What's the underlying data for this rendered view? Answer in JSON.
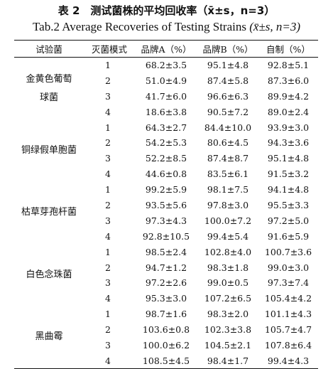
{
  "title_cn": "表 2　测试菌株的平均回收率（x̄±s，n=3）",
  "title_en": {
    "prefix": "Tab.2   Average Recoveries of Testing Strains",
    "suffix": "(x̄±s, n=3)"
  },
  "headers": [
    "试验菌",
    "灭菌模式",
    "品牌A（%）",
    "品牌B（%）",
    "自制（%）"
  ],
  "groups": [
    {
      "strain": "金黄色葡萄\n球菌",
      "rows": [
        {
          "mode": "1",
          "a": "68.2±3.5",
          "b": "95.1±4.8",
          "c": "92.8±5.1"
        },
        {
          "mode": "2",
          "a": "51.0±4.9",
          "b": "87.4±5.8",
          "c": "87.3±6.0"
        },
        {
          "mode": "3",
          "a": "41.7±6.0",
          "b": "96.6±6.3",
          "c": "89.9±4.2"
        },
        {
          "mode": "4",
          "a": "18.6±3.8",
          "b": "90.5±7.2",
          "c": "89.0±2.4"
        }
      ]
    },
    {
      "strain": "铜绿假单胞菌",
      "rows": [
        {
          "mode": "1",
          "a": "64.3±2.7",
          "b": "84.4±10.0",
          "c": "93.9±3.0"
        },
        {
          "mode": "2",
          "a": "54.2±5.3",
          "b": "80.6±4.5",
          "c": "94.3±3.6"
        },
        {
          "mode": "3",
          "a": "52.2±8.5",
          "b": "87.4±8.7",
          "c": "95.1±4.8"
        },
        {
          "mode": "4",
          "a": "44.6±0.8",
          "b": "83.5±6.1",
          "c": "91.5±3.2"
        }
      ]
    },
    {
      "strain": "枯草芽孢杆菌",
      "rows": [
        {
          "mode": "1",
          "a": "99.2±5.9",
          "b": "98.1±7.5",
          "c": "94.1±4.8"
        },
        {
          "mode": "2",
          "a": "93.5±5.6",
          "b": "97.8±3.0",
          "c": "95.5±3.3"
        },
        {
          "mode": "3",
          "a": "97.3±4.3",
          "b": "100.0±7.2",
          "c": "97.2±5.0"
        },
        {
          "mode": "4",
          "a": "92.8±10.5",
          "b": "99.4±5.4",
          "c": "91.6±5.9"
        }
      ]
    },
    {
      "strain": "白色念珠菌",
      "rows": [
        {
          "mode": "1",
          "a": "98.5±2.4",
          "b": "102.8±4.0",
          "c": "100.7±3.6"
        },
        {
          "mode": "2",
          "a": "94.7±1.2",
          "b": "98.3±1.8",
          "c": "99.0±3.0"
        },
        {
          "mode": "3",
          "a": "97.2±2.6",
          "b": "99.0±0.5",
          "c": "97.3±7.4"
        },
        {
          "mode": "4",
          "a": "95.3±3.0",
          "b": "107.2±6.5",
          "c": "105.4±4.2"
        }
      ]
    },
    {
      "strain": "黑曲霉",
      "rows": [
        {
          "mode": "1",
          "a": "98.7±1.6",
          "b": "98.3±2.0",
          "c": "101.1±4.3"
        },
        {
          "mode": "2",
          "a": "103.6±0.8",
          "b": "102.3±3.8",
          "c": "105.7±4.7"
        },
        {
          "mode": "3",
          "a": "100.0±6.2",
          "b": "104.5±2.1",
          "c": "107.8±6.4"
        },
        {
          "mode": "4",
          "a": "108.5±4.5",
          "b": "98.4±1.7",
          "c": "99.4±4.3"
        }
      ]
    }
  ]
}
